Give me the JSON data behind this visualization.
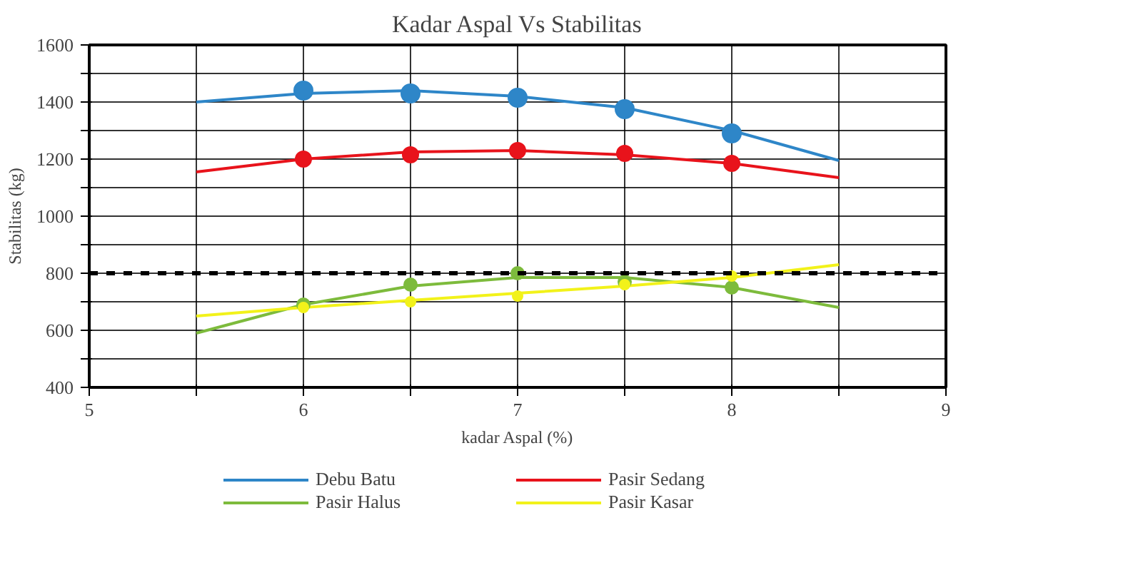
{
  "chart_data": {
    "type": "line",
    "title": "Kadar Aspal Vs Stabilitas",
    "xlabel": "kadar Aspal (%)",
    "ylabel": "Stabilitas (kg)",
    "xlim": [
      5,
      9
    ],
    "ylim": [
      400,
      1600
    ],
    "xticks": [
      5,
      {
        "value": 5.5,
        "label": null
      },
      6,
      {
        "value": 6.5,
        "label": null
      },
      7,
      {
        "value": 7.5,
        "label": null
      },
      8,
      {
        "value": 8.5,
        "label": null
      },
      9
    ],
    "yticks": [
      400,
      {
        "value": 500,
        "label": null
      },
      600,
      {
        "value": 700,
        "label": null
      },
      800,
      {
        "value": 900,
        "label": null
      },
      1000,
      {
        "value": 1100,
        "label": null
      },
      1200,
      {
        "value": 1300,
        "label": null
      },
      1400,
      {
        "value": 1500,
        "label": null
      },
      1600
    ],
    "grid": true,
    "legend": "bottom",
    "line_style": "solid",
    "ref_lines": [
      {
        "axis": "y",
        "value": 800,
        "color": "#000000",
        "line_style": "dashed"
      }
    ],
    "series": [
      {
        "name": "Debu Batu",
        "marker": "none",
        "color": "#2e86c8",
        "x": [
          5.5,
          6,
          6.5,
          7,
          7.5,
          8,
          8.5
        ],
        "values": [
          1400,
          1430,
          1440,
          1420,
          1380,
          1300,
          1195
        ]
      },
      {
        "name": "Pasir Halus",
        "marker": "none",
        "color": "#7dbb3c",
        "x": [
          5.5,
          6,
          6.5,
          7,
          7.5,
          8,
          8.5
        ],
        "values": [
          590,
          690,
          755,
          785,
          785,
          750,
          680
        ]
      },
      {
        "name": "Pasir Sedang",
        "marker": "none",
        "color": "#e8131b",
        "x": [
          5.5,
          6,
          6.5,
          7,
          7.5,
          8,
          8.5
        ],
        "values": [
          1155,
          1200,
          1225,
          1230,
          1215,
          1185,
          1135
        ]
      },
      {
        "name": "Pasir Kasar",
        "marker": "none",
        "color": "#f2f21a",
        "x": [
          5.5,
          6,
          6.5,
          7,
          7.5,
          8,
          8.5
        ],
        "values": [
          650,
          680,
          705,
          730,
          755,
          785,
          830
        ]
      },
      {
        "type": "scatter",
        "marker": "circle",
        "color": "#2e86c8",
        "x": [
          6,
          6.5,
          7,
          7.5,
          8
        ],
        "values": [
          1440,
          1430,
          1415,
          1375,
          1290
        ]
      },
      {
        "type": "scatter",
        "marker": "circle",
        "color": "#e8131b",
        "x": [
          6,
          6.5,
          7,
          7.5,
          8
        ],
        "values": [
          1200,
          1215,
          1230,
          1220,
          1185
        ]
      },
      {
        "type": "scatter",
        "marker": "circle",
        "color": "#7dbb3c",
        "x": [
          6,
          6.5,
          7,
          7.5,
          8
        ],
        "values": [
          690,
          760,
          800,
          770,
          750
        ]
      },
      {
        "type": "scatter",
        "marker": "circle",
        "color": "#f2f21a",
        "x": [
          6,
          6.5,
          7,
          7.5,
          8
        ],
        "values": [
          680,
          700,
          720,
          760,
          790
        ]
      }
    ]
  }
}
